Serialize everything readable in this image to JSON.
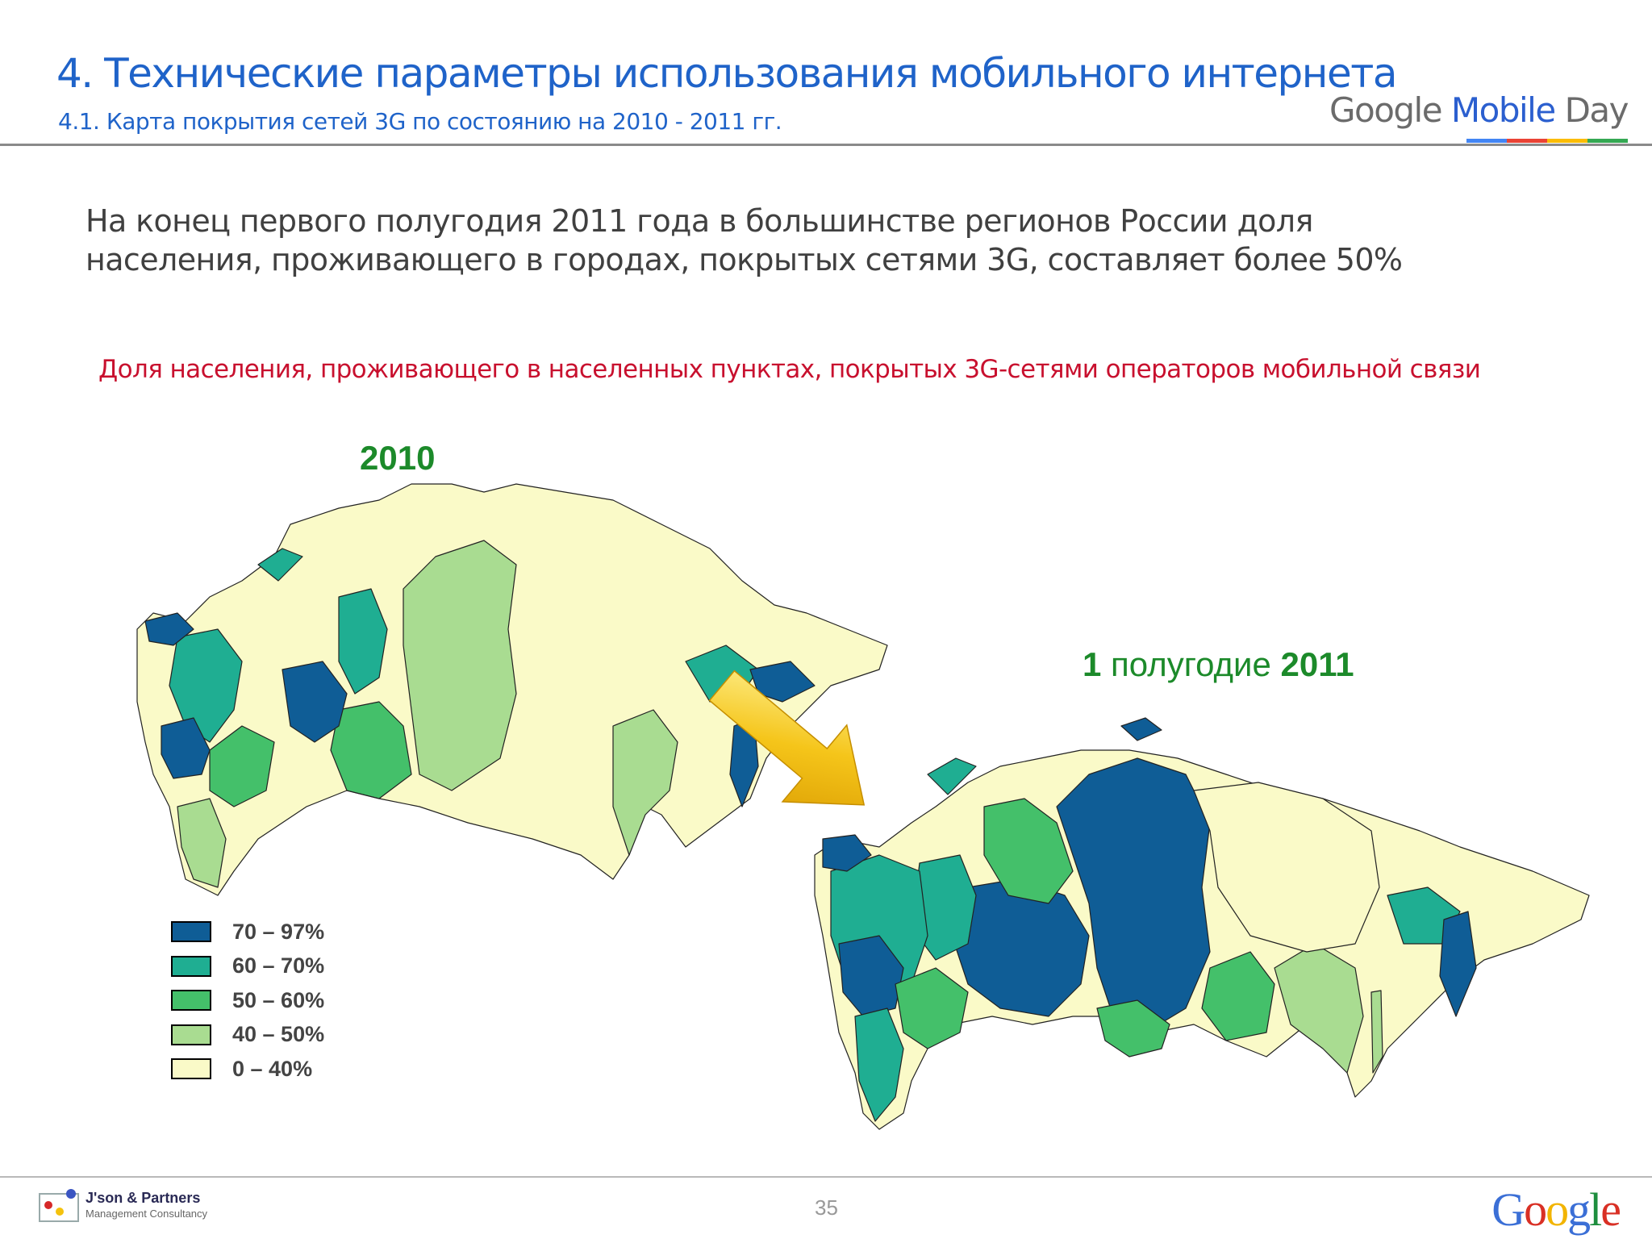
{
  "header": {
    "title": "4. Технические параметры использования мобильного интернета",
    "subtitle": "4.1. Карта покрытия сетей 3G по состоянию на 2010 - 2011 гг.",
    "brand": {
      "google": "Google",
      "mobile": "Mobile",
      "day": "Day"
    },
    "brand_colors": [
      "#4285f4",
      "#ea4335",
      "#fbbc05",
      "#34a853"
    ]
  },
  "lead_text": "На конец первого полугодия 2011 года в большинстве регионов России доля населения, проживающего в городах, покрытых сетями 3G, составляет более 50%",
  "map_caption": "Доля населения, проживающего в населенных пунктах, покрытых 3G-сетями операторов мобильной связи",
  "maps": {
    "left_label": "2010",
    "right_label_num": "1",
    "right_label_word": " полугодие ",
    "right_label_year": "2011",
    "arrow_color": "#f2b705"
  },
  "legend": [
    {
      "label": "70 – 97%",
      "color": "#0f5d96"
    },
    {
      "label": "60 – 70%",
      "color": "#1fae92"
    },
    {
      "label": "50 – 60%",
      "color": "#44c06a"
    },
    {
      "label": "40 – 50%",
      "color": "#a9dc91"
    },
    {
      "label": "0 – 40%",
      "color": "#fafac8"
    }
  ],
  "footer": {
    "company": "J'son & Partners",
    "company_sub": "Management Consultancy",
    "page_number": "35",
    "google_logo": "Google"
  }
}
